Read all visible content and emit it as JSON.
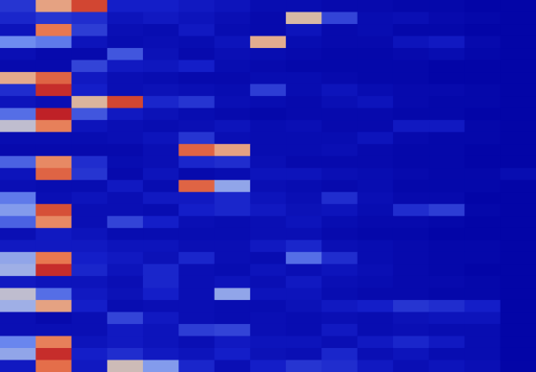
{
  "chart_data": {
    "type": "heatmap",
    "title": "",
    "xlabel": "",
    "ylabel": "",
    "n_rows": 31,
    "n_cols": 15,
    "value_range": [
      0,
      1
    ],
    "colormap": "coolwarm",
    "values": [
      [
        0.18,
        0.72,
        0.92,
        0.12,
        0.12,
        0.1,
        0.08,
        0.05,
        0.05,
        0.04,
        0.04,
        0.03,
        0.03,
        0.02,
        0.02
      ],
      [
        0.14,
        0.18,
        0.16,
        0.08,
        0.1,
        0.08,
        0.06,
        0.04,
        0.55,
        0.22,
        0.05,
        0.06,
        0.04,
        0.03,
        0.02
      ],
      [
        0.08,
        0.82,
        0.2,
        0.06,
        0.05,
        0.1,
        0.05,
        0.04,
        0.08,
        0.04,
        0.05,
        0.03,
        0.03,
        0.02,
        0.02
      ],
      [
        0.35,
        0.32,
        0.08,
        0.05,
        0.06,
        0.05,
        0.08,
        0.68,
        0.05,
        0.04,
        0.04,
        0.08,
        0.1,
        0.04,
        0.02
      ],
      [
        0.06,
        0.04,
        0.04,
        0.26,
        0.07,
        0.04,
        0.06,
        0.05,
        0.04,
        0.03,
        0.03,
        0.04,
        0.05,
        0.03,
        0.02
      ],
      [
        0.04,
        0.04,
        0.22,
        0.1,
        0.09,
        0.12,
        0.05,
        0.04,
        0.03,
        0.03,
        0.03,
        0.03,
        0.02,
        0.02,
        0.02
      ],
      [
        0.7,
        0.86,
        0.1,
        0.06,
        0.05,
        0.04,
        0.04,
        0.05,
        0.05,
        0.04,
        0.03,
        0.03,
        0.02,
        0.02,
        0.02
      ],
      [
        0.16,
        0.96,
        0.12,
        0.06,
        0.07,
        0.06,
        0.05,
        0.2,
        0.05,
        0.08,
        0.05,
        0.04,
        0.04,
        0.03,
        0.02
      ],
      [
        0.08,
        0.06,
        0.6,
        0.92,
        0.14,
        0.18,
        0.06,
        0.05,
        0.04,
        0.06,
        0.08,
        0.04,
        0.03,
        0.03,
        0.02
      ],
      [
        0.3,
        0.98,
        0.26,
        0.1,
        0.07,
        0.05,
        0.04,
        0.03,
        0.04,
        0.04,
        0.04,
        0.03,
        0.03,
        0.02,
        0.02
      ],
      [
        0.48,
        0.8,
        0.08,
        0.06,
        0.05,
        0.06,
        0.08,
        0.05,
        0.06,
        0.04,
        0.04,
        0.1,
        0.1,
        0.03,
        0.02
      ],
      [
        0.05,
        0.05,
        0.05,
        0.06,
        0.08,
        0.18,
        0.06,
        0.05,
        0.05,
        0.05,
        0.08,
        0.04,
        0.03,
        0.03,
        0.02
      ],
      [
        0.04,
        0.04,
        0.04,
        0.04,
        0.06,
        0.86,
        0.72,
        0.05,
        0.05,
        0.06,
        0.04,
        0.03,
        0.03,
        0.02,
        0.02
      ],
      [
        0.28,
        0.78,
        0.16,
        0.05,
        0.06,
        0.14,
        0.16,
        0.06,
        0.04,
        0.04,
        0.04,
        0.03,
        0.03,
        0.02,
        0.02
      ],
      [
        0.08,
        0.86,
        0.18,
        0.04,
        0.08,
        0.04,
        0.05,
        0.08,
        0.08,
        0.06,
        0.05,
        0.04,
        0.03,
        0.03,
        0.05
      ],
      [
        0.06,
        0.05,
        0.05,
        0.1,
        0.05,
        0.86,
        0.4,
        0.06,
        0.05,
        0.04,
        0.05,
        0.03,
        0.03,
        0.03,
        0.02
      ],
      [
        0.32,
        0.06,
        0.08,
        0.06,
        0.1,
        0.1,
        0.14,
        0.08,
        0.06,
        0.16,
        0.06,
        0.04,
        0.04,
        0.02,
        0.02
      ],
      [
        0.38,
        0.9,
        0.06,
        0.06,
        0.05,
        0.12,
        0.14,
        0.1,
        0.07,
        0.08,
        0.05,
        0.16,
        0.2,
        0.03,
        0.02
      ],
      [
        0.28,
        0.78,
        0.06,
        0.22,
        0.12,
        0.06,
        0.05,
        0.06,
        0.08,
        0.05,
        0.04,
        0.04,
        0.03,
        0.02,
        0.02
      ],
      [
        0.06,
        0.1,
        0.08,
        0.05,
        0.05,
        0.05,
        0.05,
        0.06,
        0.06,
        0.04,
        0.03,
        0.03,
        0.02,
        0.02,
        0.02
      ],
      [
        0.1,
        0.1,
        0.1,
        0.08,
        0.08,
        0.06,
        0.06,
        0.1,
        0.14,
        0.06,
        0.05,
        0.04,
        0.03,
        0.03,
        0.02
      ],
      [
        0.4,
        0.82,
        0.12,
        0.1,
        0.07,
        0.14,
        0.06,
        0.05,
        0.3,
        0.16,
        0.05,
        0.04,
        0.03,
        0.03,
        0.02
      ],
      [
        0.42,
        0.96,
        0.14,
        0.08,
        0.14,
        0.06,
        0.05,
        0.08,
        0.06,
        0.08,
        0.06,
        0.04,
        0.03,
        0.02,
        0.02
      ],
      [
        0.1,
        0.08,
        0.08,
        0.06,
        0.14,
        0.06,
        0.08,
        0.06,
        0.1,
        0.06,
        0.05,
        0.04,
        0.04,
        0.03,
        0.02
      ],
      [
        0.48,
        0.3,
        0.1,
        0.07,
        0.12,
        0.06,
        0.4,
        0.08,
        0.08,
        0.05,
        0.04,
        0.04,
        0.03,
        0.03,
        0.02
      ],
      [
        0.42,
        0.72,
        0.12,
        0.05,
        0.06,
        0.06,
        0.05,
        0.05,
        0.07,
        0.1,
        0.12,
        0.18,
        0.16,
        0.12,
        0.02
      ],
      [
        0.06,
        0.04,
        0.06,
        0.22,
        0.1,
        0.06,
        0.05,
        0.06,
        0.05,
        0.06,
        0.05,
        0.07,
        0.08,
        0.08,
        0.02
      ],
      [
        0.06,
        0.06,
        0.06,
        0.1,
        0.08,
        0.2,
        0.22,
        0.06,
        0.05,
        0.1,
        0.05,
        0.06,
        0.05,
        0.05,
        0.02
      ],
      [
        0.34,
        0.8,
        0.08,
        0.1,
        0.08,
        0.06,
        0.1,
        0.08,
        0.08,
        0.06,
        0.1,
        0.14,
        0.1,
        0.05,
        0.02
      ],
      [
        0.4,
        0.96,
        0.12,
        0.16,
        0.1,
        0.08,
        0.12,
        0.07,
        0.06,
        0.14,
        0.06,
        0.08,
        0.05,
        0.05,
        0.02
      ],
      [
        0.1,
        0.84,
        0.1,
        0.52,
        0.38,
        0.14,
        0.06,
        0.12,
        0.18,
        0.16,
        0.1,
        0.06,
        0.08,
        0.06,
        0.02
      ]
    ]
  }
}
